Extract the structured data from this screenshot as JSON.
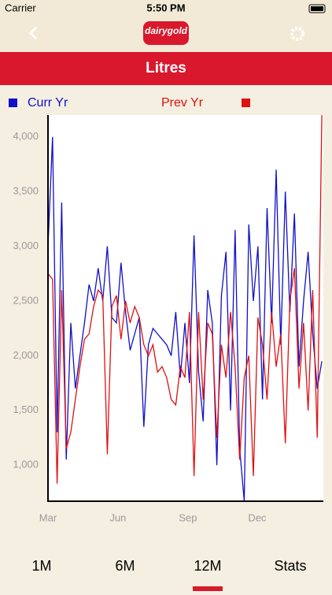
{
  "status_bar": {
    "carrier": "Carrier",
    "time": "5:50 PM"
  },
  "header": {
    "logo": "dairygold",
    "title": "Litres"
  },
  "tabs": [
    "1M",
    "6M",
    "12M",
    "Stats"
  ],
  "chart_data": {
    "type": "line",
    "x": [
      0,
      6,
      12,
      18,
      24,
      30,
      36,
      42,
      48,
      54,
      60,
      66,
      72,
      78,
      84,
      90,
      96,
      102,
      108,
      114,
      120,
      126,
      132,
      138,
      144,
      150,
      156,
      162,
      168,
      174,
      180,
      186,
      192,
      198,
      204,
      210,
      216,
      222,
      228,
      234,
      240,
      246,
      252,
      258,
      264,
      270,
      276,
      282,
      288,
      294,
      300,
      306,
      312,
      318,
      324,
      330,
      336,
      342,
      348,
      354,
      360
    ],
    "series": [
      {
        "name": "Curr Yr",
        "color": "#1010c8",
        "values": [
          3000,
          4000,
          1300,
          3400,
          1050,
          2300,
          1700,
          2000,
          2300,
          2650,
          2500,
          2800,
          2500,
          3000,
          2350,
          2300,
          2850,
          2400,
          2050,
          2200,
          2350,
          1350,
          2100,
          2250,
          2200,
          2150,
          2100,
          2000,
          2400,
          1800,
          2300,
          1750,
          3100,
          1850,
          1400,
          2600,
          2300,
          1000,
          2550,
          2950,
          1500,
          3150,
          1150,
          670,
          3200,
          2500,
          3000,
          1600,
          3350,
          2300,
          3700,
          2100,
          3500,
          2400,
          3300,
          1900,
          2500,
          2950,
          2200,
          1700,
          1950
        ]
      },
      {
        "name": "Prev Yr",
        "color": "#e01010",
        "values": [
          2750,
          2700,
          830,
          2600,
          1150,
          1300,
          1600,
          1900,
          2150,
          2200,
          2450,
          2600,
          2550,
          1100,
          2450,
          2550,
          2150,
          2500,
          2300,
          2450,
          2350,
          2100,
          2000,
          2100,
          1850,
          1900,
          1800,
          1600,
          1550,
          1900,
          1800,
          2400,
          900,
          2400,
          1600,
          2300,
          2200,
          1250,
          2100,
          1800,
          2400,
          1900,
          1050,
          1800,
          2000,
          900,
          2350,
          2100,
          1600,
          2400,
          1900,
          2200,
          1200,
          2500,
          2800,
          1700,
          2300,
          1500,
          2600,
          1250,
          4200
        ]
      }
    ],
    "xlim": [
      0,
      362
    ],
    "xticks": [
      {
        "value": 0,
        "label": "Mar"
      },
      {
        "value": 92,
        "label": "Jun"
      },
      {
        "value": 184,
        "label": "Sep"
      },
      {
        "value": 275,
        "label": "Dec"
      }
    ],
    "ylim": [
      670,
      4200
    ],
    "yticks": [
      {
        "value": 1000,
        "label": "1,000"
      },
      {
        "value": 1500,
        "label": "1,500"
      },
      {
        "value": 2000,
        "label": "2,000"
      },
      {
        "value": 2500,
        "label": "2,500"
      },
      {
        "value": 3000,
        "label": "3,000"
      },
      {
        "value": 3500,
        "label": "3,500"
      },
      {
        "value": 4000,
        "label": "4,000"
      }
    ],
    "grid": false
  }
}
